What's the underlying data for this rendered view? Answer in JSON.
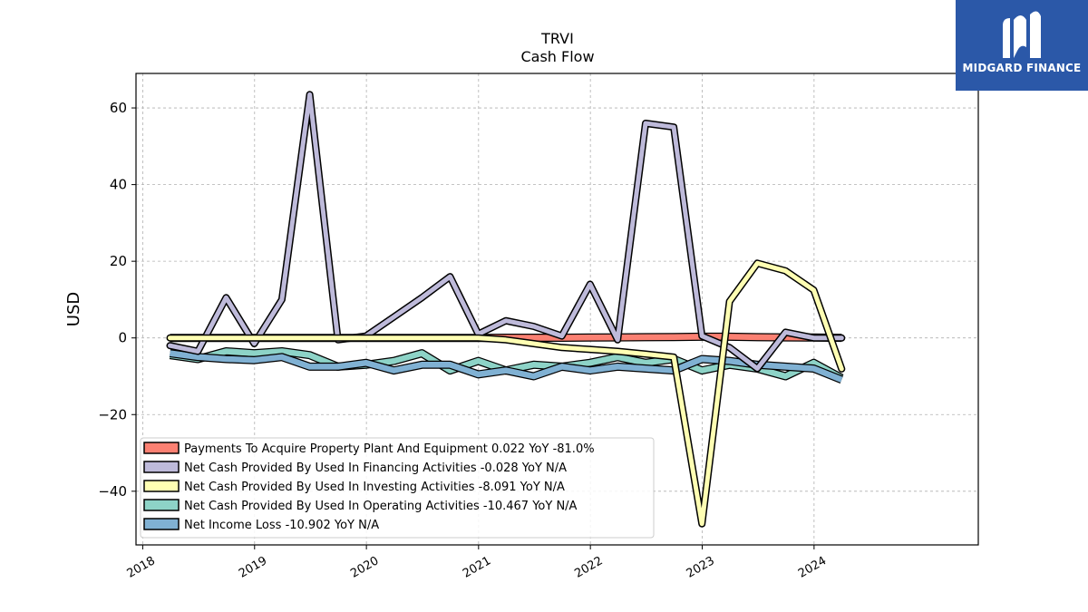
{
  "brand": {
    "name": "MIDGARD FINANCE",
    "logo_icon": "midgard-m-logo-icon",
    "background": "#2b58a8"
  },
  "chart_data": {
    "type": "line",
    "title": "TRVI",
    "subtitle": "Cash Flow",
    "xlabel": "",
    "ylabel": "USD",
    "xlim": [
      "2017-12-10",
      "2025-06-20"
    ],
    "ylim": [
      -54,
      69
    ],
    "yticks": [
      -40,
      -20,
      0,
      20,
      40,
      60
    ],
    "xticks": [
      "2018",
      "2019",
      "2020",
      "2021",
      "2022",
      "2023",
      "2024"
    ],
    "grid": true,
    "legend_position": "bottom-left",
    "x": [
      "2018-03-31",
      "2018-06-30",
      "2018-09-30",
      "2018-12-31",
      "2019-03-31",
      "2019-06-30",
      "2019-09-30",
      "2019-12-31",
      "2020-03-31",
      "2020-06-30",
      "2020-09-30",
      "2020-12-31",
      "2021-03-31",
      "2021-06-30",
      "2021-09-30",
      "2021-12-31",
      "2022-03-31",
      "2022-06-30",
      "2022-09-30",
      "2022-12-31",
      "2023-03-31",
      "2023-06-30",
      "2023-09-30",
      "2023-12-31",
      "2024-03-31"
    ],
    "series": [
      {
        "name": "Payments To Acquire Property Plant And Equipment  0.022 YoY -81.0%",
        "color": "#fb8072",
        "style": "band",
        "values": [
          0.0,
          0.0,
          0.0,
          0.0,
          0.0,
          0.0,
          0.0,
          0.0,
          0.0,
          0.0,
          0.0,
          0.0,
          0.05,
          0.05,
          0.05,
          0.1,
          0.15,
          0.2,
          0.25,
          0.3,
          0.3,
          0.2,
          0.15,
          0.1,
          0.022
        ]
      },
      {
        "name": "Net Cash Provided By Used In Financing Activities  -0.028 YoY N/A",
        "color": "#bebada",
        "style": "line",
        "values": [
          -2.0,
          -3.5,
          10.5,
          -1.5,
          10.0,
          63.5,
          -0.5,
          0.5,
          5.5,
          10.5,
          16.0,
          1.0,
          4.5,
          3.0,
          0.5,
          14.0,
          -0.5,
          56.0,
          55.0,
          0.5,
          -2.5,
          -8.0,
          1.5,
          0.0,
          -0.028
        ]
      },
      {
        "name": "Net Cash Provided By Used In Investing Activities  -8.091 YoY N/A",
        "color": "#ffffb3",
        "style": "line",
        "values": [
          0.0,
          0.0,
          0.0,
          0.0,
          0.0,
          0.0,
          0.0,
          0.0,
          0.0,
          0.0,
          0.0,
          0.0,
          -0.5,
          -1.5,
          -2.5,
          -3.0,
          -3.5,
          -4.2,
          -5.0,
          -48.5,
          9.5,
          19.5,
          17.5,
          12.5,
          -8.091
        ]
      },
      {
        "name": "Net Cash Provided By Used In Operating Activities  -10.467 YoY N/A",
        "color": "#8dd3c7",
        "style": "band",
        "values": [
          -4.5,
          -5.5,
          -3.5,
          -4.0,
          -3.5,
          -4.5,
          -7.5,
          -7.0,
          -6.0,
          -4.0,
          -8.5,
          -6.0,
          -8.5,
          -7.0,
          -7.5,
          -6.5,
          -5.0,
          -6.5,
          -5.5,
          -8.5,
          -7.0,
          -8.0,
          -10.0,
          -6.5,
          -10.467
        ]
      },
      {
        "name": "Net Income Loss  -10.902 YoY N/A",
        "color": "#80b1d3",
        "style": "band",
        "values": [
          -4.0,
          -5.0,
          -5.5,
          -5.8,
          -5.0,
          -7.5,
          -7.5,
          -6.5,
          -8.5,
          -7.0,
          -7.0,
          -9.5,
          -8.5,
          -10.0,
          -7.5,
          -8.5,
          -7.5,
          -8.0,
          -8.5,
          -5.5,
          -6.0,
          -7.0,
          -7.5,
          -8.0,
          -10.902
        ]
      }
    ]
  }
}
